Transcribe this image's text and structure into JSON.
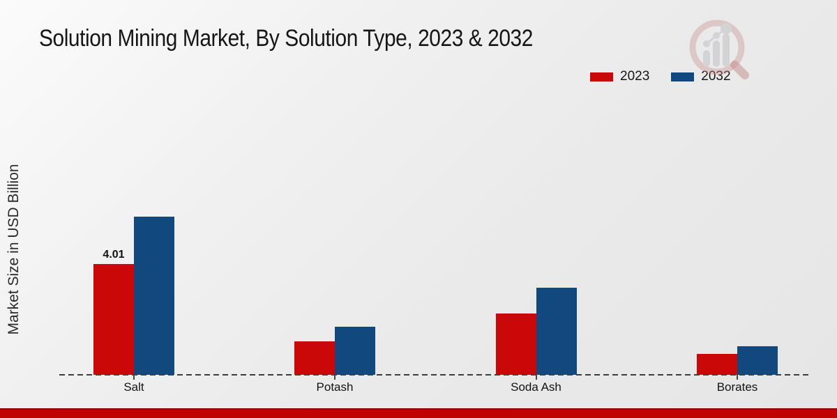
{
  "chart": {
    "title": "Solution Mining Market, By Solution Type, 2023 & 2032",
    "ylabel": "Market Size in USD Billion"
  },
  "chart_data": {
    "type": "bar",
    "title": "Solution Mining Market, By Solution Type, 2023 & 2032",
    "xlabel": "",
    "ylabel": "Market Size in USD Billion",
    "categories": [
      "Salt",
      "Potash",
      "Soda Ash",
      "Borates"
    ],
    "series": [
      {
        "name": "2023",
        "color": "#cb0808",
        "values": [
          4.01,
          1.21,
          2.22,
          0.76
        ]
      },
      {
        "name": "2032",
        "color": "#11497f",
        "values": [
          5.72,
          1.74,
          3.15,
          1.03
        ]
      }
    ],
    "bar_labels": [
      {
        "category": "Salt",
        "series": "2023",
        "text": "4.01"
      }
    ],
    "legend_position": "top-right",
    "grid": false,
    "baseline_style": "dashed",
    "ylim": [
      0,
      6.3
    ],
    "units": "USD Billion"
  },
  "branding": {
    "bottom_strip_color": "#bf0303",
    "watermark": "magnifier-bar-chart-logo"
  }
}
